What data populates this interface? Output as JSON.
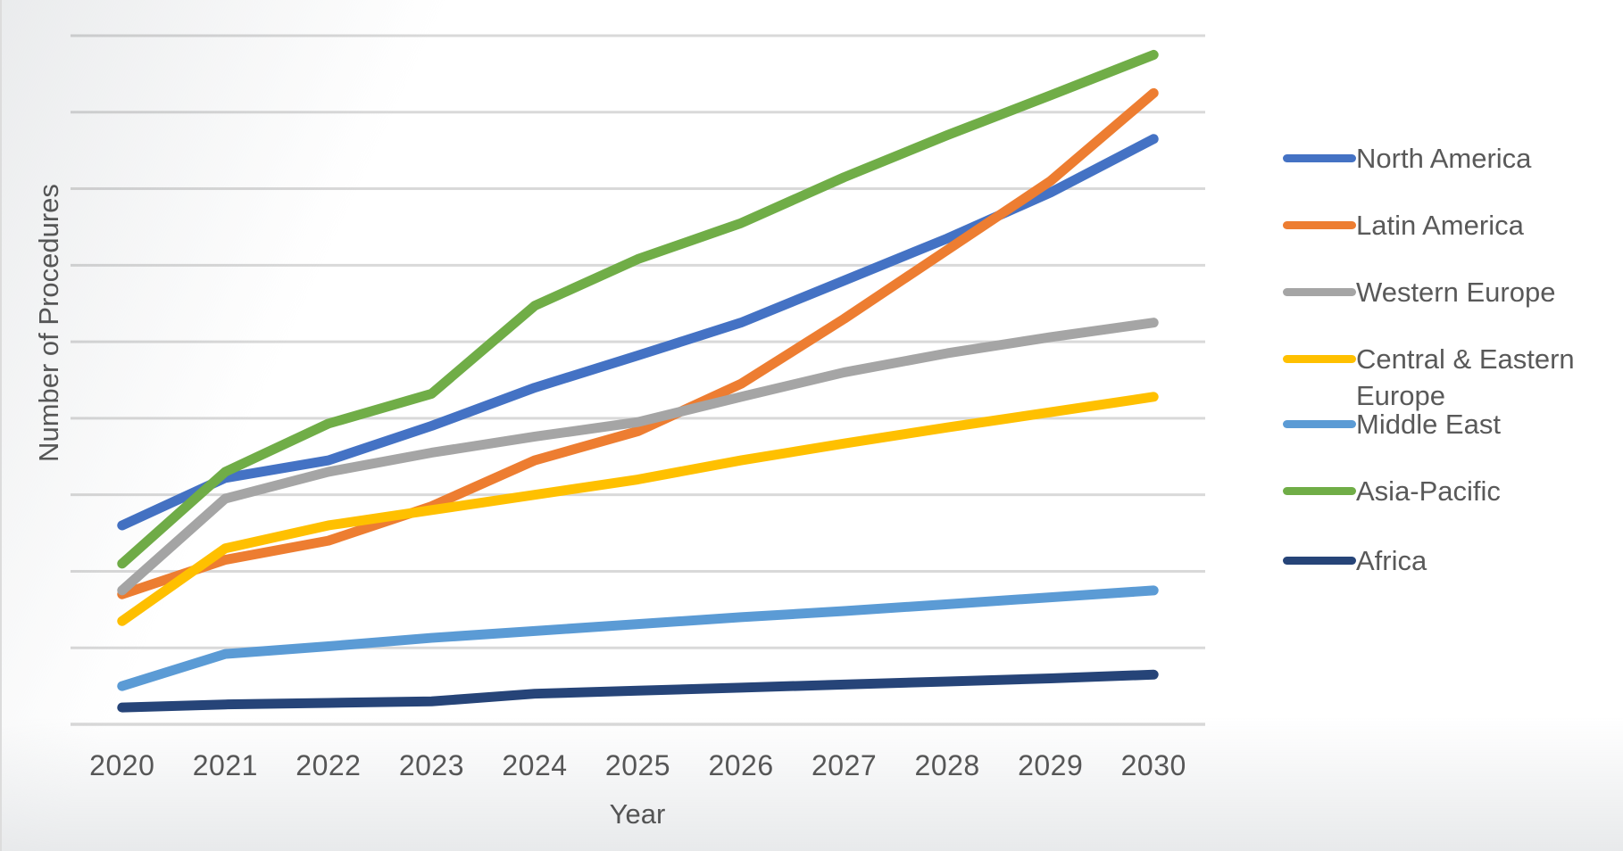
{
  "chart_data": {
    "type": "line",
    "title": "",
    "xlabel": "Year",
    "ylabel": "Number of Procedures",
    "categories": [
      "2020",
      "2021",
      "2022",
      "2023",
      "2024",
      "2025",
      "2026",
      "2027",
      "2028",
      "2029",
      "2030"
    ],
    "series": [
      {
        "name": "North America",
        "color": "#4472C4",
        "values": [
          2.6,
          3.22,
          3.45,
          3.9,
          4.4,
          4.82,
          5.25,
          5.8,
          6.35,
          6.95,
          7.65
        ]
      },
      {
        "name": "Latin America",
        "color": "#ED7D31",
        "values": [
          1.7,
          2.15,
          2.4,
          2.85,
          3.45,
          3.83,
          4.45,
          5.3,
          6.2,
          7.1,
          8.25
        ]
      },
      {
        "name": "Western Europe",
        "color": "#A5A5A5",
        "values": [
          1.75,
          2.95,
          3.3,
          3.55,
          3.76,
          3.95,
          4.28,
          4.6,
          4.85,
          5.06,
          5.25
        ]
      },
      {
        "name": "Central & Eastern Europe",
        "color": "#FFC000",
        "values": [
          1.35,
          2.3,
          2.6,
          2.8,
          3.0,
          3.2,
          3.45,
          3.67,
          3.88,
          4.08,
          4.28
        ]
      },
      {
        "name": "Middle East",
        "color": "#5B9BD5",
        "values": [
          0.5,
          0.92,
          1.02,
          1.13,
          1.22,
          1.31,
          1.4,
          1.48,
          1.57,
          1.66,
          1.75
        ]
      },
      {
        "name": "Asia-Pacific",
        "color": "#70AD47",
        "values": [
          2.1,
          3.3,
          3.93,
          4.32,
          5.47,
          6.08,
          6.55,
          7.15,
          7.7,
          8.22,
          8.75
        ]
      },
      {
        "name": "Africa",
        "color": "#264478",
        "values": [
          0.22,
          0.26,
          0.28,
          0.3,
          0.4,
          0.44,
          0.48,
          0.52,
          0.56,
          0.6,
          0.65
        ]
      }
    ],
    "ylim": [
      0,
      9
    ],
    "units_note": "relative units; one horizontal gridline = 1 unit, no numeric y-axis labels shown",
    "y_tick_labels": [],
    "gridlines": "horizontal-only",
    "grid_color": "#D9D9D9",
    "text_color": "#595959",
    "legend_position": "right"
  }
}
